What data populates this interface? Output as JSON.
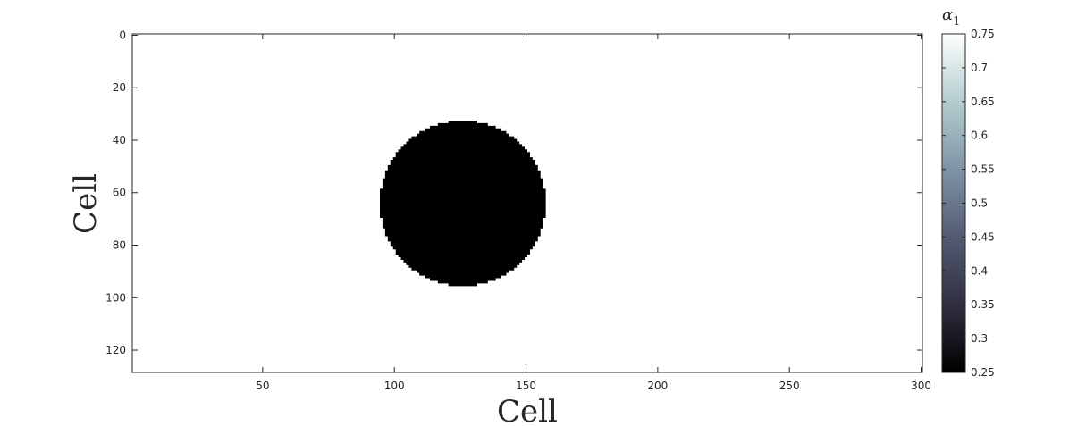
{
  "chart_data": {
    "type": "heatmap",
    "xlabel": "Cell",
    "ylabel": "Cell",
    "xlim": [
      1,
      300
    ],
    "ylim": [
      0,
      128
    ],
    "y_direction": "reversed",
    "x_ticks": [
      50,
      100,
      150,
      200,
      250,
      300
    ],
    "y_ticks": [
      0,
      20,
      40,
      60,
      80,
      100,
      120
    ],
    "field": {
      "background_value": 0.75,
      "disc": {
        "center_x": 126,
        "center_y": 64,
        "radius": 31.5,
        "value": 0.25
      }
    },
    "colorbar": {
      "title": "α",
      "title_subscript": "1",
      "range": [
        0.25,
        0.75
      ],
      "ticks": [
        "0.25",
        "0.3",
        "0.35",
        "0.4",
        "0.45",
        "0.5",
        "0.55",
        "0.6",
        "0.65",
        "0.7",
        "0.75"
      ],
      "colormap": "bone",
      "colormap_stops": [
        "#000000",
        "#2f2f41",
        "#545a72",
        "#7e94a6",
        "#b3cdcd",
        "#ffffff"
      ]
    }
  }
}
